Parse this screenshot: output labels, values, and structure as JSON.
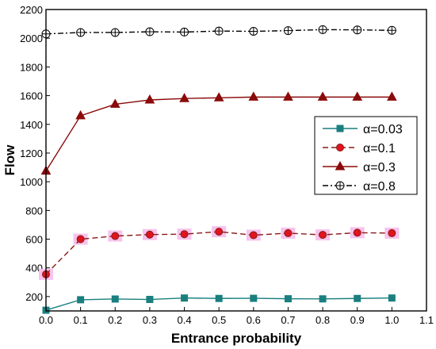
{
  "chart_data": {
    "type": "line",
    "xlabel": "Entrance probability",
    "ylabel": "Flow",
    "xlim": [
      0.0,
      1.1
    ],
    "ylim": [
      100,
      2200
    ],
    "xticks": [
      "0.0",
      "0.1",
      "0.2",
      "0.3",
      "0.4",
      "0.5",
      "0.6",
      "0.7",
      "0.8",
      "0.9",
      "1.0",
      "1.1"
    ],
    "yticks": [
      "200",
      "400",
      "600",
      "800",
      "1000",
      "1200",
      "1400",
      "1600",
      "1800",
      "2000",
      "2200"
    ],
    "x": [
      0.0,
      0.1,
      0.2,
      0.3,
      0.4,
      0.5,
      0.6,
      0.7,
      0.8,
      0.9,
      1.0
    ],
    "grid": false,
    "legend_position": "right-middle",
    "series": [
      {
        "name": "α=0.03",
        "values": [
          105,
          178,
          183,
          180,
          190,
          187,
          188,
          185,
          184,
          187,
          190
        ],
        "color": "#1a7f7f",
        "marker": "square",
        "linestyle": "solid"
      },
      {
        "name": "α=0.1",
        "values": [
          355,
          600,
          622,
          632,
          635,
          652,
          628,
          642,
          630,
          645,
          642
        ],
        "color": "#8b1a1a",
        "marker": "circle",
        "linestyle": "dashed",
        "marker_fill": "#e0141e",
        "highlight": "#f7c3ec"
      },
      {
        "name": "α=0.3",
        "values": [
          1075,
          1460,
          1540,
          1570,
          1580,
          1585,
          1590,
          1590,
          1590,
          1590,
          1590
        ],
        "color": "#8b0a0a",
        "marker": "triangle",
        "linestyle": "solid"
      },
      {
        "name": "α=0.8",
        "values": [
          2030,
          2040,
          2040,
          2045,
          2043,
          2050,
          2048,
          2053,
          2060,
          2058,
          2055
        ],
        "color": "#000000",
        "marker": "circle-plus",
        "linestyle": "dashdot"
      }
    ]
  }
}
